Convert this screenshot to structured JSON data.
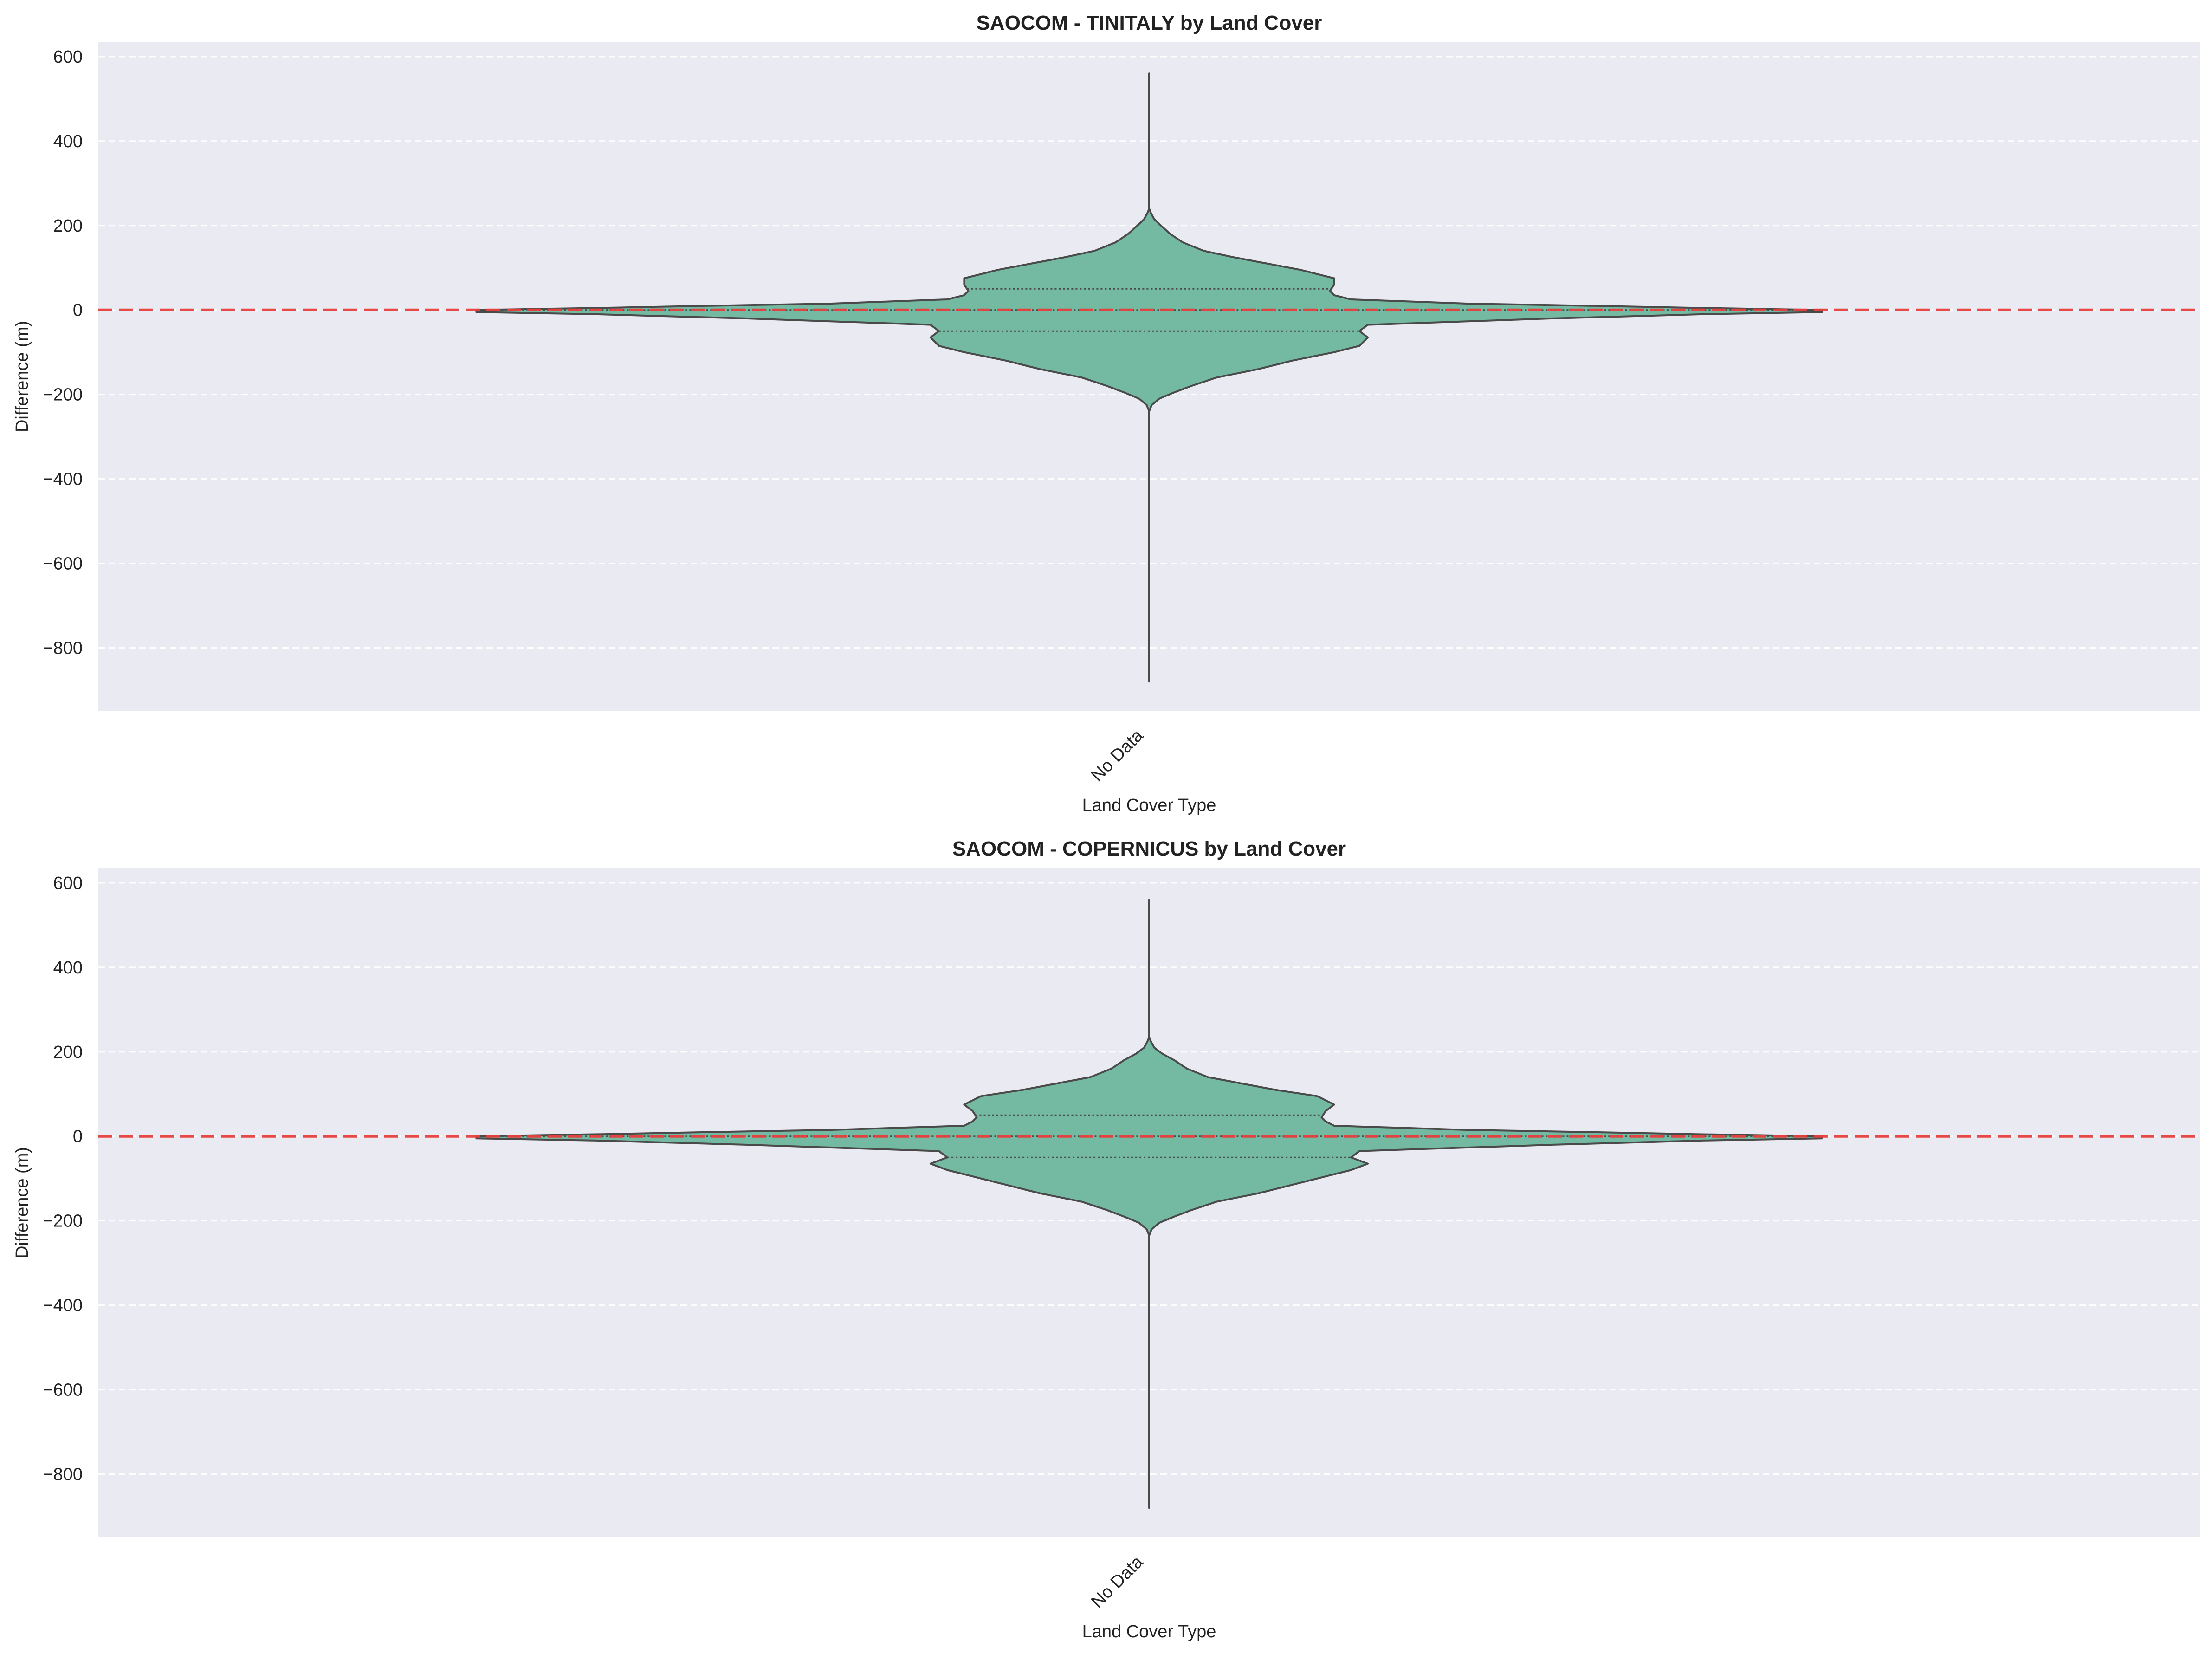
{
  "chart_data": [
    {
      "type": "violin",
      "title": "SAOCOM - TINITALY by Land Cover",
      "xlabel": "Land Cover Type",
      "ylabel": "Difference (m)",
      "categories": [
        "No Data"
      ],
      "ylim": [
        -950,
        635
      ],
      "yticks": [
        600,
        400,
        200,
        0,
        -200,
        -400,
        -600,
        -800
      ],
      "ytick_labels": [
        "600",
        "400",
        "200",
        "0",
        "−200",
        "−400",
        "−600",
        "−800"
      ],
      "grid": "y-dashed",
      "reference_line": {
        "y": 0,
        "style": "dashed",
        "color": "#e8403d"
      },
      "violin": {
        "category": "No Data",
        "min": -880,
        "max": 560,
        "quartiles": {
          "q1": -50,
          "median": 0,
          "q3": 50
        },
        "profile": [
          [
            -880,
            0.0
          ],
          [
            -330,
            0.0
          ],
          [
            -240,
            0.0
          ],
          [
            -225,
            0.003
          ],
          [
            -210,
            0.012
          ],
          [
            -195,
            0.03
          ],
          [
            -180,
            0.05
          ],
          [
            -160,
            0.08
          ],
          [
            -140,
            0.13
          ],
          [
            -120,
            0.17
          ],
          [
            -100,
            0.22
          ],
          [
            -85,
            0.25
          ],
          [
            -65,
            0.26
          ],
          [
            -50,
            0.25
          ],
          [
            -35,
            0.26
          ],
          [
            -20,
            0.48
          ],
          [
            -10,
            0.66
          ],
          [
            -5,
            0.8
          ],
          [
            0,
            0.8
          ],
          [
            5,
            0.65
          ],
          [
            10,
            0.52
          ],
          [
            15,
            0.38
          ],
          [
            25,
            0.24
          ],
          [
            35,
            0.22
          ],
          [
            45,
            0.215
          ],
          [
            60,
            0.22
          ],
          [
            75,
            0.22
          ],
          [
            95,
            0.18
          ],
          [
            110,
            0.14
          ],
          [
            125,
            0.1
          ],
          [
            140,
            0.065
          ],
          [
            160,
            0.04
          ],
          [
            180,
            0.025
          ],
          [
            200,
            0.014
          ],
          [
            215,
            0.006
          ],
          [
            230,
            0.002
          ],
          [
            240,
            0.0
          ],
          [
            560,
            0.0
          ]
        ]
      },
      "colors": {
        "fill": "#74b9a1",
        "edge": "#4a4a4a",
        "background": "#eaeaf2",
        "grid": "#ffffff"
      }
    },
    {
      "type": "violin",
      "title": "SAOCOM - COPERNICUS by Land Cover",
      "xlabel": "Land Cover Type",
      "ylabel": "Difference (m)",
      "categories": [
        "No Data"
      ],
      "ylim": [
        -950,
        635
      ],
      "yticks": [
        600,
        400,
        200,
        0,
        -200,
        -400,
        -600,
        -800
      ],
      "ytick_labels": [
        "600",
        "400",
        "200",
        "0",
        "−200",
        "−400",
        "−600",
        "−800"
      ],
      "grid": "y-dashed",
      "reference_line": {
        "y": 0,
        "style": "dashed",
        "color": "#e8403d"
      },
      "violin": {
        "category": "No Data",
        "min": -880,
        "max": 560,
        "quartiles": {
          "q1": -50,
          "median": 0,
          "q3": 50
        },
        "profile": [
          [
            -880,
            0.0
          ],
          [
            -330,
            0.0
          ],
          [
            -235,
            0.0
          ],
          [
            -220,
            0.003
          ],
          [
            -205,
            0.012
          ],
          [
            -190,
            0.03
          ],
          [
            -175,
            0.05
          ],
          [
            -155,
            0.08
          ],
          [
            -135,
            0.13
          ],
          [
            -115,
            0.17
          ],
          [
            -95,
            0.21
          ],
          [
            -80,
            0.24
          ],
          [
            -65,
            0.26
          ],
          [
            -50,
            0.24
          ],
          [
            -35,
            0.25
          ],
          [
            -20,
            0.48
          ],
          [
            -10,
            0.66
          ],
          [
            -5,
            0.8
          ],
          [
            0,
            0.8
          ],
          [
            5,
            0.65
          ],
          [
            10,
            0.52
          ],
          [
            15,
            0.38
          ],
          [
            25,
            0.22
          ],
          [
            35,
            0.21
          ],
          [
            45,
            0.205
          ],
          [
            60,
            0.21
          ],
          [
            75,
            0.22
          ],
          [
            95,
            0.2
          ],
          [
            110,
            0.15
          ],
          [
            125,
            0.11
          ],
          [
            140,
            0.07
          ],
          [
            160,
            0.045
          ],
          [
            180,
            0.03
          ],
          [
            195,
            0.016
          ],
          [
            210,
            0.006
          ],
          [
            225,
            0.002
          ],
          [
            235,
            0.0
          ],
          [
            560,
            0.0
          ]
        ]
      },
      "colors": {
        "fill": "#74b9a1",
        "edge": "#4a4a4a",
        "background": "#eaeaf2",
        "grid": "#ffffff"
      }
    }
  ]
}
